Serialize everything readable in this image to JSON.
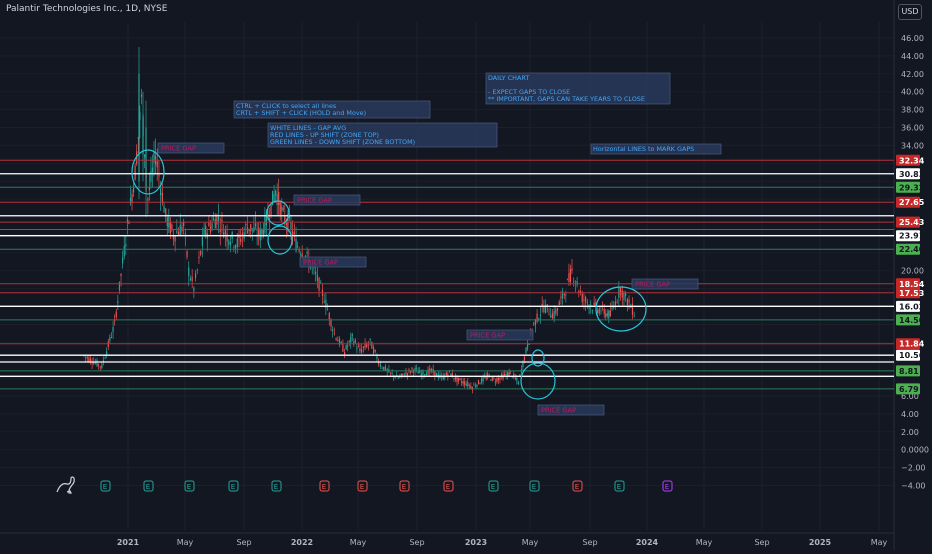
{
  "header": {
    "title": "Palantir Technologies Inc., 1D, NYSE",
    "currency_button": "USD"
  },
  "colors": {
    "background": "#131722",
    "up": "#26a69a",
    "down": "#ef5350",
    "white_line": "#ffffff",
    "red_line": "#b2323a",
    "green_line": "#2e7d5b",
    "note_bg": "#2a3a5c",
    "note_text": "#42a5f5",
    "price_gap_text": "#c2185b",
    "circle": "#26c6da"
  },
  "chart_data": {
    "type": "candlestick",
    "title": "Palantir Technologies Inc., 1D, NYSE",
    "y_axis_ticks": [
      "46.00",
      "44.00",
      "42.00",
      "40.00",
      "38.00",
      "36.00",
      "34.00",
      "20.00",
      "6.00",
      "4.00",
      "2.00",
      "0.0000",
      "−2.00",
      "−4.00"
    ],
    "y_range": [
      -5.5,
      48
    ],
    "x_axis_labels": [
      "2021",
      "May",
      "Sep",
      "2022",
      "May",
      "Sep",
      "2023",
      "May",
      "Sep",
      "2024",
      "May",
      "Sep",
      "2025",
      "May"
    ],
    "price_tags": [
      {
        "value": 32.34,
        "label": "32.34",
        "kind": "red"
      },
      {
        "value": 30.83,
        "label": "30.83",
        "kind": "white"
      },
      {
        "value": 29.32,
        "label": "29.32",
        "kind": "green"
      },
      {
        "value": 27.65,
        "label": "27.65",
        "kind": "red"
      },
      {
        "value": 25.43,
        "label": "25.43",
        "kind": "red"
      },
      {
        "value": 23.91,
        "label": "23.91",
        "kind": "white"
      },
      {
        "value": 22.4,
        "label": "22.40",
        "kind": "green"
      },
      {
        "value": 18.54,
        "label": "18.54",
        "kind": "red"
      },
      {
        "value": 17.53,
        "label": "17.53",
        "kind": "red"
      },
      {
        "value": 16.02,
        "label": "16.02",
        "kind": "white"
      },
      {
        "value": 14.5,
        "label": "14.50",
        "kind": "green"
      },
      {
        "value": 11.84,
        "label": "11.84",
        "kind": "red"
      },
      {
        "value": 10.56,
        "label": "10.56",
        "kind": "white"
      },
      {
        "value": 8.81,
        "label": "8.81",
        "kind": "green"
      },
      {
        "value": 6.79,
        "label": "6.79",
        "kind": "green"
      }
    ],
    "horizontal_lines": [
      {
        "value": 32.34,
        "kind": "red"
      },
      {
        "value": 30.83,
        "kind": "white"
      },
      {
        "value": 29.32,
        "kind": "green"
      },
      {
        "value": 27.65,
        "kind": "red"
      },
      {
        "value": 26.14,
        "kind": "white"
      },
      {
        "value": 25.43,
        "kind": "red"
      },
      {
        "value": 24.6,
        "kind": "green"
      },
      {
        "value": 23.91,
        "kind": "white"
      },
      {
        "value": 22.4,
        "kind": "green"
      },
      {
        "value": 18.54,
        "kind": "red"
      },
      {
        "value": 17.53,
        "kind": "red"
      },
      {
        "value": 16.02,
        "kind": "white"
      },
      {
        "value": 14.5,
        "kind": "green"
      },
      {
        "value": 11.84,
        "kind": "red"
      },
      {
        "value": 10.56,
        "kind": "white"
      },
      {
        "value": 9.8,
        "kind": "white"
      },
      {
        "value": 8.81,
        "kind": "green"
      },
      {
        "value": 8.2,
        "kind": "white"
      },
      {
        "value": 6.79,
        "kind": "green"
      }
    ],
    "price_path": [
      [
        0.0,
        10.5
      ],
      [
        0.7,
        9.3
      ],
      [
        1.2,
        14
      ],
      [
        1.7,
        25
      ],
      [
        2.0,
        31
      ],
      [
        2.25,
        39
      ],
      [
        2.5,
        28
      ],
      [
        2.8,
        33
      ],
      [
        3.2,
        26
      ],
      [
        3.5,
        24
      ],
      [
        3.9,
        25
      ],
      [
        4.1,
        20
      ],
      [
        4.3,
        18
      ],
      [
        4.7,
        24
      ],
      [
        5.2,
        26
      ],
      [
        5.6,
        24
      ],
      [
        6.0,
        23
      ],
      [
        6.4,
        25
      ],
      [
        6.9,
        24
      ],
      [
        7.2,
        26
      ],
      [
        7.5,
        29
      ],
      [
        7.8,
        26
      ],
      [
        8.1,
        25
      ],
      [
        8.3,
        23
      ],
      [
        8.6,
        22
      ],
      [
        9.0,
        20
      ],
      [
        9.4,
        17
      ],
      [
        9.8,
        13
      ],
      [
        10.2,
        11
      ],
      [
        10.5,
        12.5
      ],
      [
        10.8,
        11
      ],
      [
        11.2,
        12
      ],
      [
        11.6,
        9.5
      ],
      [
        12.0,
        8.5
      ],
      [
        12.3,
        8
      ],
      [
        12.6,
        8.5
      ],
      [
        12.9,
        9
      ],
      [
        13.2,
        8.5
      ],
      [
        13.6,
        8.8
      ],
      [
        14.0,
        8
      ],
      [
        14.3,
        8.6
      ],
      [
        14.6,
        7.8
      ],
      [
        14.9,
        7.5
      ],
      [
        15.2,
        7
      ],
      [
        15.5,
        7.6
      ],
      [
        15.8,
        8.2
      ],
      [
        16.1,
        7.8
      ],
      [
        16.4,
        8.2
      ],
      [
        16.7,
        8.6
      ],
      [
        17.0,
        7.5
      ],
      [
        17.3,
        11
      ],
      [
        17.6,
        14
      ],
      [
        18.0,
        16
      ],
      [
        18.4,
        15
      ],
      [
        18.8,
        17.5
      ],
      [
        19.1,
        20
      ],
      [
        19.5,
        17
      ],
      [
        19.9,
        16
      ],
      [
        20.3,
        15.5
      ],
      [
        20.6,
        15
      ],
      [
        21.0,
        18
      ],
      [
        21.2,
        17
      ],
      [
        21.6,
        15
      ]
    ],
    "notes": [
      {
        "text_lines": [
          "DAILY CHART",
          "",
          "- EXPECT GAPS TO CLOSE",
          "** IMPORTANT, GAPS CAN TAKE YEARS TO CLOSE"
        ]
      },
      {
        "text_lines": [
          "CTRL + CLICK to select all lines",
          "CRTL + SHIFT + CLICK (HOLD and Move)"
        ]
      },
      {
        "text_lines": [
          "WHITE LINES - GAP AVG",
          "RED LINES - UP SHIFT (ZONE TOP)",
          "GREEN LINES - DOWN SHIFT (ZONE BOTTOM)"
        ]
      },
      {
        "text_lines": [
          "Horizontal LINES to MARK GAPS"
        ]
      }
    ],
    "price_gap_labels": [
      "PRICE GAP",
      "PRICE GAP",
      "PRICE GAP",
      "PRICE GAP",
      "PRICE GAP",
      "PRICE GAP"
    ],
    "event_markers": [
      "E",
      "E",
      "E",
      "E",
      "E",
      "E",
      "E",
      "E",
      "E",
      "E",
      "E",
      "E",
      "E",
      "E"
    ]
  }
}
